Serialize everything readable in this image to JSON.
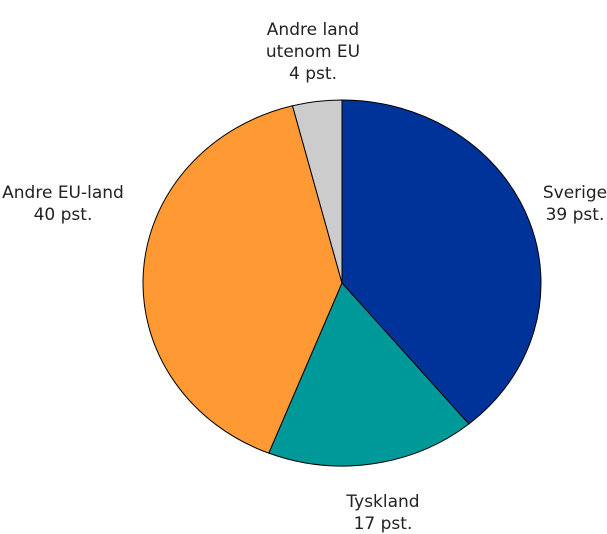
{
  "chart_data": {
    "type": "pie",
    "title": "",
    "start_angle_deg": -90,
    "direction": "clockwise",
    "slices": [
      {
        "name": "Sverige",
        "label_lines": [
          "Sverige",
          "39 pst."
        ],
        "value": 39,
        "color": "#003399"
      },
      {
        "name": "Tyskland",
        "label_lines": [
          "Tyskland",
          "17 pst."
        ],
        "value": 17,
        "color": "#009999"
      },
      {
        "name": "Andre EU-land",
        "label_lines": [
          "Andre EU-land",
          "40 pst."
        ],
        "value": 40,
        "color": "#ff9933"
      },
      {
        "name": "Andre land utenom EU",
        "label_lines": [
          "Andre land",
          "utenom EU",
          "4 pst."
        ],
        "value": 4,
        "color": "#cccccc"
      }
    ]
  }
}
